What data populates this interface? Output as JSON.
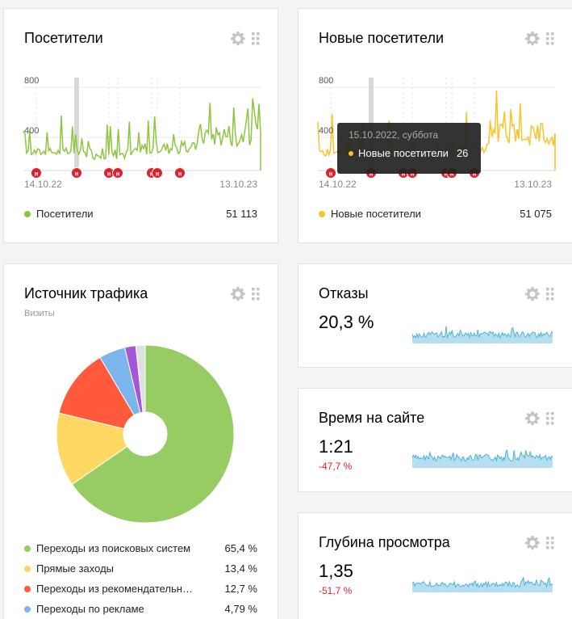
{
  "visitors_card": {
    "title": "Посетители",
    "y_ticks": [
      "800",
      "400"
    ],
    "date_start": "14.10.22",
    "date_end": "13.10.23",
    "marker_label": "н",
    "legend_label": "Посетители",
    "legend_value": "51 113",
    "color": "#8dc63f"
  },
  "new_visitors_card": {
    "title": "Новые посетители",
    "y_ticks": [
      "800",
      "400"
    ],
    "date_start": "14.10.22",
    "date_end": "13.10.23",
    "legend_label": "Новые посетители",
    "legend_value": "51 075",
    "color": "#f8c42b",
    "tooltip": {
      "date": "15.10.2022, суббота",
      "label": "Новые посетители",
      "value": "26"
    }
  },
  "traffic_card": {
    "title": "Источник трафика",
    "subtitle": "Визиты",
    "legend": [
      {
        "label": "Переходы из поисковых систем",
        "value": "65,4 %",
        "color": "#97cc64"
      },
      {
        "label": "Прямые заходы",
        "value": "13,4 %",
        "color": "#ffd763"
      },
      {
        "label": "Переходы из рекомендательн…",
        "value": "12,7 %",
        "color": "#ff5a3c"
      },
      {
        "label": "Переходы по рекламе",
        "value": "4,79 %",
        "color": "#7cb5ec"
      }
    ]
  },
  "chart_data": {
    "type": "pie",
    "title": "Источник трафика",
    "subtitle": "Визиты",
    "categories": [
      "Переходы из поисковых систем",
      "Прямые заходы",
      "Переходы из рекомендательн…",
      "Переходы по рекламе",
      "",
      ""
    ],
    "values": [
      65.4,
      13.4,
      12.7,
      4.79,
      2.0,
      1.71
    ],
    "colors": [
      "#97cc64",
      "#ffd763",
      "#ff5a3c",
      "#7cb5ec",
      "#a357d6",
      "#e0e0e0"
    ],
    "donut": true,
    "legend": "bottom"
  },
  "bounce_card": {
    "title": "Отказы",
    "value": "20,3 %"
  },
  "time_card": {
    "title": "Время на сайте",
    "value": "1:21",
    "delta": "-47,7 %"
  },
  "depth_card": {
    "title": "Глубина просмотра",
    "value": "1,35",
    "delta": "-51,7 %"
  }
}
